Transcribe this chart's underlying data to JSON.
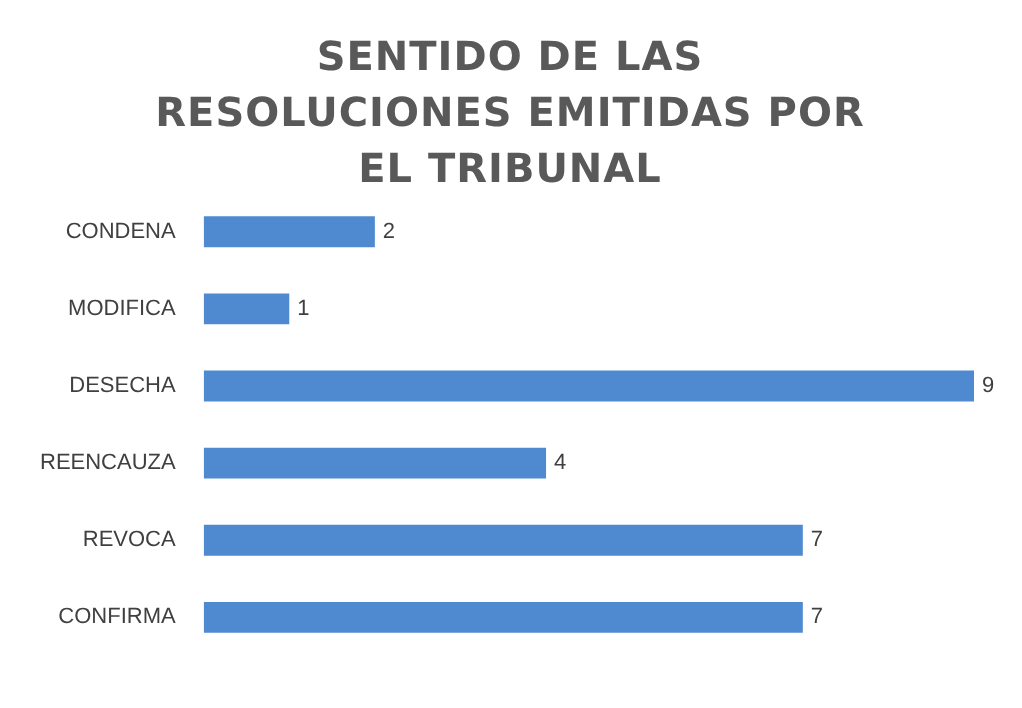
{
  "chart_data": {
    "type": "bar",
    "orientation": "horizontal",
    "title": "SENTIDO DE LAS RESOLUCIONES EMITIDAS POR EL TRIBUNAL",
    "categories": [
      "CONDENA",
      "MODIFICA",
      "DESECHA",
      "REENCAUZA",
      "REVOCA",
      "CONFIRMA"
    ],
    "values": [
      2,
      1,
      9,
      4,
      7,
      7
    ],
    "color": "#4f8ad0",
    "data_labels": true
  }
}
